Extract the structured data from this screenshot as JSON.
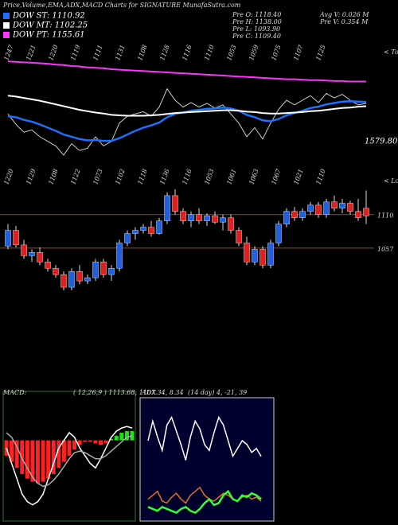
{
  "title": "Price,Volume,EMA,ADX,MACD Charts for SIGNATURE MunafaSutra.com",
  "legend": [
    "DOW ST: 1110.92",
    "DOW MT: 1102.25",
    "DOW PT: 1155.61"
  ],
  "stats": [
    "Pre  O: 1118.40",
    "Pre  H: 1138.00",
    "Pre  L: 1093.90",
    "Pre  C: 1109.40",
    "Avg V: 0.026  M",
    "Pre  V: 0.354  M"
  ],
  "chart_data": [
    {
      "type": "line",
      "side_label": "< Tops",
      "last_label": "1579.80",
      "top_labels": [
        "1247",
        "1221",
        "1220",
        "1119",
        "1111",
        "1131",
        "1108",
        "1128",
        "1116",
        "1110",
        "1053",
        "1059",
        "1075",
        "1107",
        "1125"
      ],
      "ylim": [
        960,
        1230
      ],
      "series": [
        {
          "name": "DOW ST",
          "color": "#1f6fff",
          "values": [
            1080,
            1078,
            1072,
            1068,
            1062,
            1055,
            1048,
            1040,
            1035,
            1030,
            1027,
            1028,
            1026,
            1026,
            1032,
            1040,
            1048,
            1055,
            1060,
            1066,
            1078,
            1085,
            1088,
            1092,
            1094,
            1096,
            1097,
            1099,
            1097,
            1092,
            1083,
            1078,
            1071,
            1069,
            1074,
            1082,
            1087,
            1092,
            1098,
            1101,
            1106,
            1109,
            1112,
            1113,
            1112,
            1111
          ]
        },
        {
          "name": "DOW MT",
          "color": "#ffffff",
          "values": [
            1125,
            1123,
            1120,
            1117,
            1114,
            1110,
            1106,
            1102,
            1098,
            1094,
            1091,
            1088,
            1086,
            1083,
            1082,
            1081,
            1081,
            1081,
            1082,
            1083,
            1085,
            1087,
            1088,
            1089,
            1090,
            1091,
            1092,
            1093,
            1093,
            1092,
            1090,
            1089,
            1087,
            1086,
            1086,
            1087,
            1088,
            1089,
            1091,
            1092,
            1094,
            1096,
            1098,
            1099,
            1101,
            1102
          ]
        },
        {
          "name": "DOW PT",
          "color": "#ff33ff",
          "values": [
            1200,
            1199,
            1198,
            1197,
            1196,
            1195,
            1193,
            1192,
            1190,
            1189,
            1187,
            1186,
            1185,
            1183,
            1182,
            1181,
            1180,
            1179,
            1178,
            1177,
            1176,
            1175,
            1174,
            1173,
            1172,
            1171,
            1170,
            1169,
            1168,
            1167,
            1166,
            1165,
            1164,
            1163,
            1162,
            1161,
            1161,
            1160,
            1159,
            1159,
            1158,
            1157,
            1157,
            1156,
            1156,
            1156
          ]
        }
      ]
    },
    {
      "type": "candlestick",
      "side_label": "< Lows",
      "top_labels": [
        "1220",
        "1129",
        "1108",
        "1122",
        "1073",
        "1102",
        "1118",
        "1136",
        "1116",
        "1053",
        "1061",
        "1063",
        "1067",
        "1021",
        "1110"
      ],
      "ylim": [
        980,
        1160
      ],
      "yticks": [
        1110,
        1057
      ],
      "up_color": "#1f5fe0",
      "down_color": "#e02020",
      "open": [
        1060,
        1085,
        1062,
        1045,
        1050,
        1035,
        1025,
        1015,
        995,
        1020,
        1005,
        1010,
        1035,
        1015,
        1025,
        1065,
        1080,
        1085,
        1090,
        1080,
        1100,
        1140,
        1115,
        1100,
        1110,
        1100,
        1108,
        1098,
        1105,
        1085,
        1065,
        1035,
        1055,
        1030,
        1065,
        1095,
        1115,
        1105,
        1115,
        1125,
        1110,
        1130,
        1120,
        1128,
        1115,
        1120
      ],
      "high": [
        1095,
        1092,
        1070,
        1055,
        1058,
        1040,
        1030,
        1020,
        1025,
        1030,
        1015,
        1040,
        1040,
        1030,
        1070,
        1085,
        1090,
        1095,
        1100,
        1105,
        1145,
        1150,
        1120,
        1115,
        1120,
        1112,
        1115,
        1110,
        1110,
        1090,
        1075,
        1060,
        1060,
        1070,
        1100,
        1120,
        1122,
        1120,
        1130,
        1130,
        1135,
        1140,
        1135,
        1132,
        1135,
        1148
      ],
      "low": [
        1055,
        1058,
        1040,
        1035,
        1030,
        1020,
        1010,
        990,
        990,
        1000,
        1000,
        1005,
        1010,
        1005,
        1020,
        1060,
        1070,
        1080,
        1075,
        1078,
        1095,
        1110,
        1095,
        1090,
        1095,
        1092,
        1095,
        1085,
        1080,
        1060,
        1030,
        1030,
        1025,
        1025,
        1060,
        1090,
        1100,
        1100,
        1110,
        1105,
        1105,
        1115,
        1112,
        1110,
        1100,
        1095
      ],
      "close": [
        1085,
        1062,
        1045,
        1050,
        1035,
        1025,
        1015,
        995,
        1020,
        1005,
        1010,
        1035,
        1015,
        1025,
        1065,
        1080,
        1085,
        1090,
        1080,
        1100,
        1140,
        1115,
        1100,
        1110,
        1100,
        1108,
        1098,
        1105,
        1085,
        1065,
        1035,
        1055,
        1030,
        1065,
        1095,
        1115,
        1105,
        1115,
        1125,
        1110,
        1130,
        1120,
        1128,
        1115,
        1105,
        1108
      ]
    },
    {
      "type": "macd",
      "label": "MACD:",
      "params": "( 12,26,9 ) 1113.68,  1107.34,  8.34",
      "ylim": [
        -50,
        20
      ],
      "histogram": [
        -10,
        -14,
        -18,
        -22,
        -25,
        -27,
        -28,
        -27,
        -25,
        -22,
        -18,
        -14,
        -10,
        -6,
        -3,
        -1,
        -1,
        -2,
        -3,
        -2,
        1,
        3,
        5,
        6,
        6
      ],
      "macd": [
        -5,
        -15,
        -25,
        -35,
        -40,
        -42,
        -40,
        -35,
        -25,
        -15,
        -5,
        0,
        5,
        2,
        -5,
        -10,
        -15,
        -18,
        -12,
        -5,
        2,
        6,
        8,
        9,
        8
      ],
      "signal": [
        5,
        2,
        -4,
        -12,
        -18,
        -24,
        -28,
        -30,
        -29,
        -26,
        -22,
        -17,
        -12,
        -8,
        -7,
        -8,
        -10,
        -12,
        -12,
        -10,
        -7,
        -4,
        -1,
        2,
        3
      ],
      "pos_color": "#22dd22",
      "neg_color": "#ff2222"
    },
    {
      "type": "adx",
      "label": "ADX",
      "params": "(14  day) 4,  -21,  39",
      "ylim": [
        0,
        60
      ],
      "series": [
        {
          "color": "#ffffff",
          "values": [
            40,
            50,
            42,
            35,
            48,
            52,
            45,
            38,
            30,
            42,
            50,
            46,
            38,
            35,
            44,
            52,
            48,
            40,
            32,
            36,
            40,
            38,
            34,
            36,
            32
          ]
        },
        {
          "color": "#e07020",
          "values": [
            10,
            12,
            14,
            9,
            8,
            11,
            13,
            10,
            8,
            12,
            14,
            16,
            12,
            10,
            9,
            11,
            13,
            12,
            10,
            9,
            11,
            12,
            10,
            11,
            9
          ]
        },
        {
          "color": "#33ff33",
          "values": [
            6,
            5,
            4,
            6,
            5,
            4,
            3,
            5,
            6,
            4,
            3,
            5,
            8,
            10,
            7,
            8,
            12,
            14,
            10,
            9,
            12,
            11,
            13,
            12,
            10
          ]
        }
      ]
    }
  ]
}
